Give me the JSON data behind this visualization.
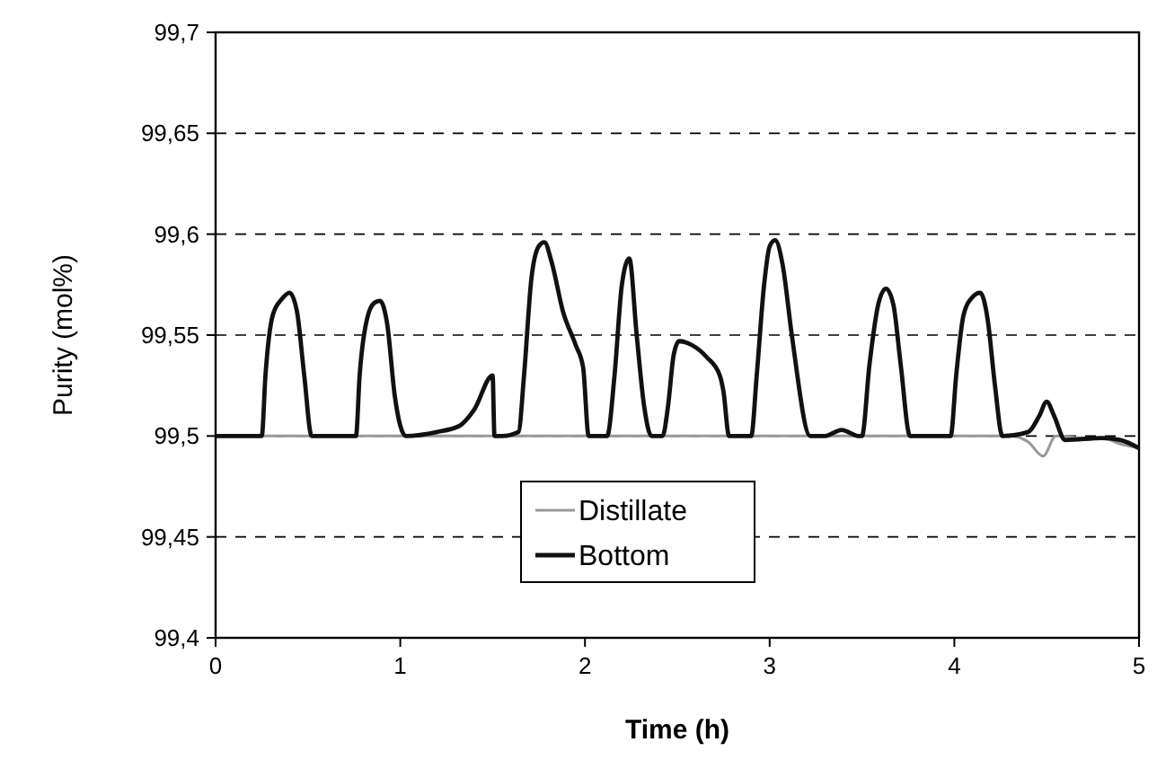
{
  "chart_data": {
    "type": "line",
    "xlabel": "Time (h)",
    "ylabel": "Purity (mol%)",
    "xlim": [
      0,
      5
    ],
    "xticks": [
      0,
      1,
      2,
      3,
      4,
      5
    ],
    "ylim": [
      99.4,
      99.7
    ],
    "yticks": [
      {
        "value": 99.4,
        "label": "99,4"
      },
      {
        "value": 99.45,
        "label": "99,45"
      },
      {
        "value": 99.5,
        "label": "99,5"
      },
      {
        "value": 99.55,
        "label": "99,55"
      },
      {
        "value": 99.6,
        "label": "99,6"
      },
      {
        "value": 99.65,
        "label": "99,65"
      },
      {
        "value": 99.7,
        "label": "99,7"
      }
    ],
    "grid": "y",
    "legend": "bottom",
    "line_style": "solid",
    "series": [
      {
        "name": "Distillate",
        "color": "#999999",
        "x": [
          0,
          1,
          2,
          3,
          4,
          4.3,
          4.4,
          4.48,
          4.55,
          4.7,
          4.8,
          4.9,
          5
        ],
        "values": [
          99.5,
          99.5,
          99.5,
          99.5,
          99.5,
          99.5,
          99.497,
          99.49,
          99.5,
          99.499,
          99.499,
          99.496,
          99.494
        ]
      },
      {
        "name": "Bottom",
        "color": "#111111",
        "x": [
          0,
          0.25,
          0.27,
          0.31,
          0.36,
          0.4,
          0.44,
          0.48,
          0.52,
          0.55,
          0.76,
          0.78,
          0.82,
          0.86,
          0.89,
          0.93,
          0.97,
          1.03,
          1.2,
          1.32,
          1.4,
          1.5,
          1.51,
          1.55,
          1.64,
          1.67,
          1.71,
          1.75,
          1.78,
          1.82,
          1.88,
          1.95,
          1.99,
          2.02,
          2.12,
          2.16,
          2.2,
          2.24,
          2.28,
          2.32,
          2.36,
          2.42,
          2.45,
          2.48,
          2.51,
          2.58,
          2.66,
          2.73,
          2.75,
          2.78,
          2.9,
          2.93,
          2.97,
          3.0,
          3.03,
          3.07,
          3.12,
          3.22,
          3.3,
          3.39,
          3.48,
          3.5,
          3.54,
          3.59,
          3.63,
          3.67,
          3.71,
          3.76,
          3.98,
          4.01,
          4.05,
          4.1,
          4.14,
          4.18,
          4.22,
          4.26,
          4.4,
          4.46,
          4.5,
          4.54,
          4.6,
          4.8,
          4.9,
          5
        ],
        "values": [
          99.5,
          99.5,
          99.53,
          99.56,
          99.568,
          99.571,
          99.562,
          99.53,
          99.5,
          99.5,
          99.5,
          99.53,
          99.558,
          99.566,
          99.567,
          99.555,
          99.52,
          99.5,
          99.502,
          99.505,
          99.513,
          99.53,
          99.5,
          99.5,
          99.502,
          99.53,
          99.578,
          99.594,
          99.596,
          99.586,
          99.562,
          99.545,
          99.534,
          99.5,
          99.5,
          99.53,
          99.575,
          99.588,
          99.55,
          99.515,
          99.5,
          99.5,
          99.515,
          99.54,
          99.547,
          99.545,
          99.539,
          99.53,
          99.522,
          99.5,
          99.5,
          99.53,
          99.575,
          99.594,
          99.597,
          99.585,
          99.55,
          99.5,
          99.5,
          99.503,
          99.5,
          99.5,
          99.535,
          99.566,
          99.573,
          99.565,
          99.535,
          99.5,
          99.5,
          99.53,
          99.56,
          99.569,
          99.571,
          99.558,
          99.525,
          99.5,
          99.502,
          99.51,
          99.517,
          99.51,
          99.498,
          99.499,
          99.498,
          99.494
        ]
      }
    ]
  }
}
